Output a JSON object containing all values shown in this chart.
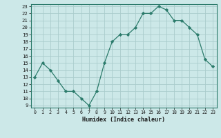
{
  "x": [
    0,
    1,
    2,
    3,
    4,
    5,
    6,
    7,
    8,
    9,
    10,
    11,
    12,
    13,
    14,
    15,
    16,
    17,
    18,
    19,
    20,
    21,
    22,
    23
  ],
  "y": [
    13,
    15,
    14,
    12.5,
    11,
    11,
    10,
    9,
    11,
    15,
    18,
    19,
    19,
    20,
    22,
    22,
    23,
    22.5,
    21,
    21,
    20,
    19,
    15.5,
    14.5
  ],
  "xlabel": "Humidex (Indice chaleur)",
  "ylim": [
    9,
    23
  ],
  "xlim": [
    -0.5,
    23.5
  ],
  "line_color": "#2a7a6a",
  "marker": "D",
  "marker_size": 2.2,
  "bg_color": "#cce8e8",
  "grid_color": "#aacccc",
  "yticks": [
    9,
    10,
    11,
    12,
    13,
    14,
    15,
    16,
    17,
    18,
    19,
    20,
    21,
    22,
    23
  ],
  "xtick_labels": [
    "0",
    "1",
    "2",
    "3",
    "4",
    "5",
    "6",
    "7",
    "8",
    "9",
    "10",
    "11",
    "12",
    "13",
    "14",
    "15",
    "16",
    "17",
    "18",
    "19",
    "20",
    "21",
    "22",
    "23"
  ]
}
